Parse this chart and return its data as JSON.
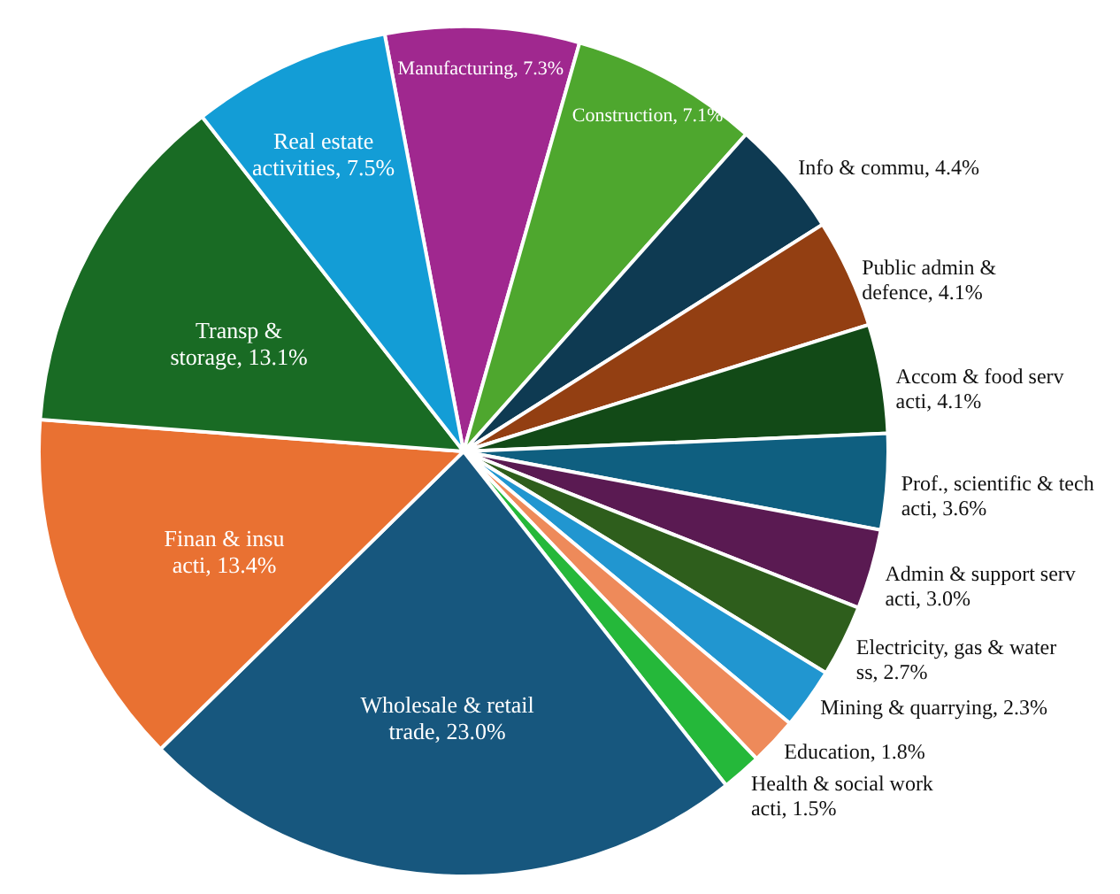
{
  "chart_data": {
    "type": "pie",
    "categories": [
      "Manufacturing",
      "Construction",
      "Info & commu",
      "Public admin & defence",
      "Accom & food serv acti",
      "Prof., scientific & tech acti",
      "Admin & support serv acti",
      "Electricity, gas & water ss",
      "Mining & quarrying",
      "Education",
      "Health & social work acti",
      "Wholesale & retail trade",
      "Finan & insu acti",
      "Transp & storage",
      "Real estate activities"
    ],
    "values": [
      7.3,
      7.1,
      4.4,
      4.1,
      4.1,
      3.6,
      3.0,
      2.7,
      2.3,
      1.8,
      1.5,
      23.0,
      13.4,
      13.1,
      7.5
    ],
    "value_labels": [
      "7.3%",
      "7.1%",
      "4.4%",
      "4.1%",
      "4.1%",
      "3.6%",
      "3.0%",
      "2.7%",
      "2.3%",
      "1.8%",
      "1.5%",
      "23.0%",
      "13.4%",
      "13.1%",
      "7.5%"
    ],
    "colors": [
      "#a0288f",
      "#4ea72e",
      "#0e3a52",
      "#933f12",
      "#124a17",
      "#0f5f80",
      "#5a1a52",
      "#2e5e1c",
      "#2196d0",
      "#ee8a5a",
      "#25b83a",
      "#17577e",
      "#e97132",
      "#196b24",
      "#139dd6"
    ]
  }
}
